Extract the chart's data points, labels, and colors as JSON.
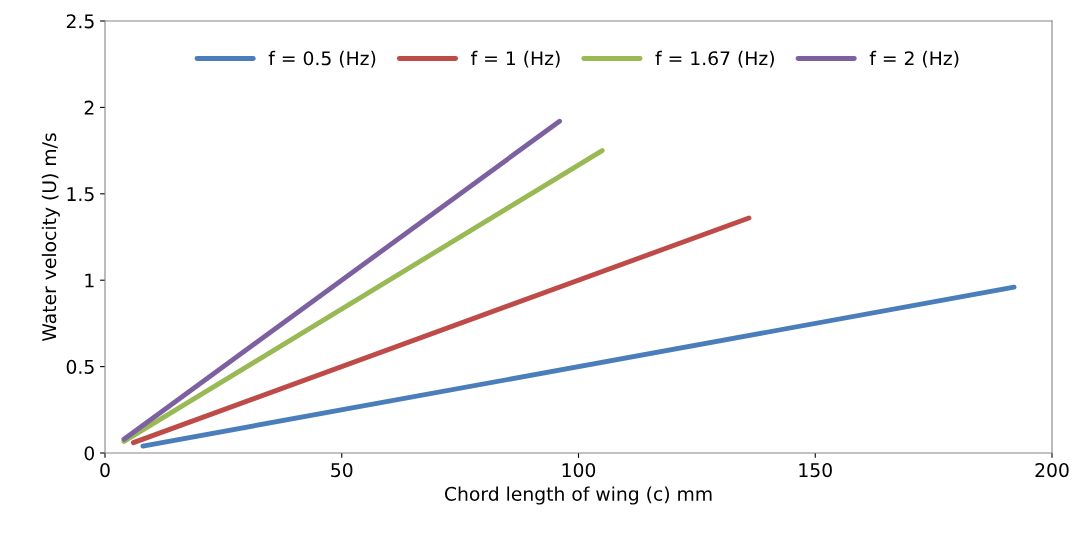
{
  "chart_data": {
    "type": "line",
    "xlabel": "Chord length of wing (c) mm",
    "ylabel": "Water velocity (U) m/s",
    "xlim": [
      0,
      200
    ],
    "xticks": [
      0,
      50,
      100,
      150,
      200
    ],
    "ylim": [
      0,
      2.5
    ],
    "yticks": [
      0,
      0.5,
      1,
      1.5,
      2,
      2.5
    ],
    "grid": false,
    "legend": "top",
    "marker": "none",
    "line_style": "solid",
    "series": [
      {
        "name": "f = 0.5 (Hz)",
        "color": "#4a7ebb",
        "x": [
          8,
          192
        ],
        "values": [
          0.04,
          0.96
        ]
      },
      {
        "name": "f = 1 (Hz)",
        "color": "#be4b48",
        "x": [
          6,
          136
        ],
        "values": [
          0.06,
          1.36
        ]
      },
      {
        "name": "f = 1.67 (Hz)",
        "color": "#98b954",
        "x": [
          4,
          105
        ],
        "values": [
          0.067,
          1.75
        ]
      },
      {
        "name": "f = 2 (Hz)",
        "color": "#7d60a0",
        "x": [
          4,
          96
        ],
        "values": [
          0.08,
          1.92
        ]
      }
    ]
  }
}
